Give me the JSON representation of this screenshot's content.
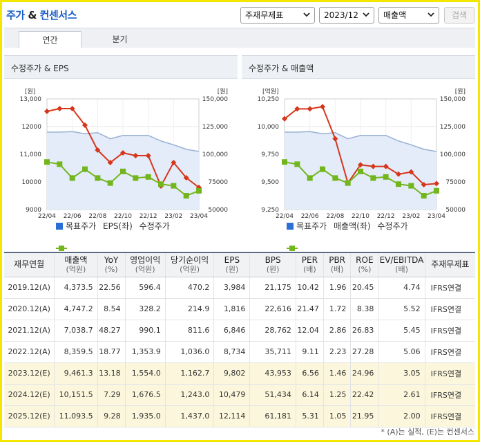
{
  "header": {
    "title_part1": "주가",
    "title_amp": "&",
    "title_part2": "컨센서스",
    "selectors": {
      "basis": "주재무제표",
      "period": "2023/12",
      "metric": "매출액"
    },
    "search_button": "검색"
  },
  "tabs": [
    {
      "label": "연간",
      "active": true
    },
    {
      "label": "분기",
      "active": false
    }
  ],
  "charts": [
    {
      "title": "수정주가 & EPS",
      "left_unit": "[원]",
      "right_unit": "[원]",
      "left_ticks": [
        "13,000",
        "12000",
        "11,000",
        "10000",
        "9000"
      ],
      "right_ticks": [
        "150,000",
        "125,000",
        "100,000",
        "75000",
        "50000"
      ],
      "x_labels": [
        "22/04",
        "22/06",
        "22/08",
        "22/10",
        "22/12",
        "23/02",
        "23/04"
      ],
      "legend": [
        "목표주가",
        "EPS(좌)",
        "수정주가"
      ],
      "chart_data": {
        "type": "line",
        "x": [
          "22/04",
          "22/05",
          "22/06",
          "22/07",
          "22/08",
          "22/09",
          "22/10",
          "22/11",
          "22/12",
          "23/01",
          "23/02",
          "23/03",
          "23/04"
        ],
        "left_range": [
          9000,
          13000
        ],
        "right_range": [
          50000,
          150000
        ],
        "series": [
          {
            "name": "목표주가",
            "axis": "right",
            "style": "area",
            "color": "#2b6fd6",
            "values": [
              120000,
              120000,
              120500,
              118500,
              119500,
              114000,
              117000,
              117000,
              117000,
              112000,
              108500,
              104500,
              102500
            ]
          },
          {
            "name": "EPS(좌)",
            "axis": "left",
            "style": "line-diamond",
            "color": "#d6361b",
            "values": [
              12550,
              12650,
              12650,
              12050,
              11150,
              10700,
              11050,
              10950,
              10950,
              9850,
              10700,
              10150,
              9800
            ]
          },
          {
            "name": "수정주가",
            "axis": "right",
            "style": "line-square",
            "color": "#72b51c",
            "values": [
              93000,
              91000,
              78500,
              86500,
              78500,
              74000,
              84500,
              78500,
              79500,
              73000,
              71500,
              62500,
              67000
            ]
          }
        ]
      }
    },
    {
      "title": "수정주가 & 매출액",
      "left_unit": "[억원]",
      "right_unit": "[원]",
      "left_ticks": [
        "10,250",
        "10,000",
        "9,750",
        "9,500",
        "9,250"
      ],
      "right_ticks": [
        "150,000",
        "125,000",
        "100,000",
        "75000",
        "50000"
      ],
      "x_labels": [
        "22/04",
        "22/06",
        "22/08",
        "22/10",
        "22/12",
        "23/02",
        "23/04"
      ],
      "legend": [
        "목표주가",
        "매출액(좌)",
        "수정주가"
      ],
      "chart_data": {
        "type": "line",
        "x": [
          "22/04",
          "22/05",
          "22/06",
          "22/07",
          "22/08",
          "22/09",
          "22/10",
          "22/11",
          "22/12",
          "23/01",
          "23/02",
          "23/03",
          "23/04"
        ],
        "left_range": [
          9250,
          10250
        ],
        "right_range": [
          50000,
          150000
        ],
        "series": [
          {
            "name": "목표주가",
            "axis": "right",
            "style": "area",
            "color": "#2b6fd6",
            "values": [
              120000,
              120000,
              120500,
              118500,
              119500,
              114000,
              117000,
              117000,
              117000,
              112000,
              108500,
              104500,
              102500
            ]
          },
          {
            "name": "매출액(좌)",
            "axis": "left",
            "style": "line-diamond",
            "color": "#d6361b",
            "values": [
              10070,
              10160,
              10160,
              10180,
              9890,
              9490,
              9655,
              9640,
              9640,
              9570,
              9590,
              9475,
              9485
            ]
          },
          {
            "name": "수정주가",
            "axis": "right",
            "style": "line-square",
            "color": "#72b51c",
            "values": [
              93000,
              91000,
              78500,
              86500,
              78500,
              74000,
              84500,
              78500,
              79500,
              73000,
              71500,
              62500,
              67000
            ]
          }
        ]
      }
    }
  ],
  "table": {
    "headers": [
      {
        "label": "재무연월",
        "unit": ""
      },
      {
        "label": "매출액",
        "unit": "(억원)"
      },
      {
        "label": "YoY",
        "unit": "(%)"
      },
      {
        "label": "영업이익",
        "unit": "(억원)"
      },
      {
        "label": "당기순이익",
        "unit": "(억원)"
      },
      {
        "label": "EPS",
        "unit": "(원)"
      },
      {
        "label": "BPS",
        "unit": "(원)"
      },
      {
        "label": "PER",
        "unit": "(배)"
      },
      {
        "label": "PBR",
        "unit": "(배)"
      },
      {
        "label": "ROE",
        "unit": "(%)"
      },
      {
        "label": "EV/EBITDA",
        "unit": "(배)"
      },
      {
        "label": "주재무제표",
        "unit": ""
      }
    ],
    "rows": [
      {
        "estimate": false,
        "cells": [
          "2019.12(A)",
          "4,373.5",
          "22.56",
          "596.4",
          "470.2",
          "3,984",
          "21,175",
          "10.42",
          "1.96",
          "20.45",
          "4.74",
          "IFRS연결"
        ]
      },
      {
        "estimate": false,
        "cells": [
          "2020.12(A)",
          "4,747.2",
          "8.54",
          "328.2",
          "214.9",
          "1,816",
          "22,616",
          "21.47",
          "1.72",
          "8.38",
          "5.52",
          "IFRS연결"
        ]
      },
      {
        "estimate": false,
        "cells": [
          "2021.12(A)",
          "7,038.7",
          "48.27",
          "990.1",
          "811.6",
          "6,846",
          "28,762",
          "12.04",
          "2.86",
          "26.83",
          "5.45",
          "IFRS연결"
        ]
      },
      {
        "estimate": false,
        "cells": [
          "2022.12(A)",
          "8,359.5",
          "18.77",
          "1,353.9",
          "1,036.0",
          "8,734",
          "35,711",
          "9.11",
          "2.23",
          "27.28",
          "5.06",
          "IFRS연결"
        ]
      },
      {
        "estimate": true,
        "cells": [
          "2023.12(E)",
          "9,461.3",
          "13.18",
          "1,554.0",
          "1,162.7",
          "9,802",
          "43,953",
          "6.56",
          "1.46",
          "24.96",
          "3.05",
          "IFRS연결"
        ]
      },
      {
        "estimate": true,
        "cells": [
          "2024.12(E)",
          "10,151.5",
          "7.29",
          "1,676.5",
          "1,243.0",
          "10,479",
          "51,434",
          "6.14",
          "1.25",
          "22.42",
          "2.61",
          "IFRS연결"
        ]
      },
      {
        "estimate": true,
        "cells": [
          "2025.12(E)",
          "11,093.5",
          "9.28",
          "1,935.0",
          "1,437.0",
          "12,114",
          "61,181",
          "5.31",
          "1.05",
          "21.95",
          "2.00",
          "IFRS연결"
        ]
      }
    ]
  },
  "footnote": "* (A)는 실적, (E)는 컨센서스",
  "colors": {
    "brand": "#1a5fc8",
    "frame": "#f5e600",
    "target_price": "#2b6fd6",
    "eps": "#d6361b",
    "adj_price": "#72b51c",
    "estimate_row": "#fcf7dc"
  }
}
